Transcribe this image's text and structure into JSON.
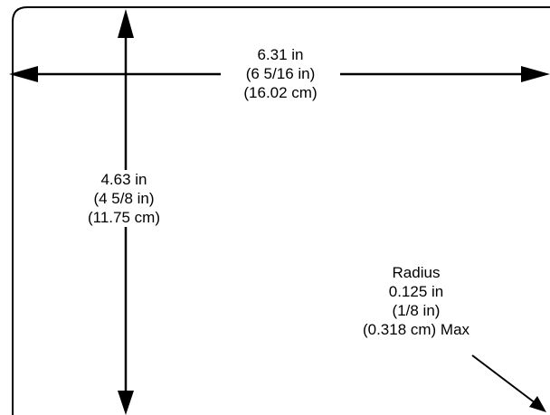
{
  "colors": {
    "line": "#000000",
    "background": "#ffffff"
  },
  "width_dimension": {
    "line1": "6.31 in",
    "line2": "(6 5/16 in)",
    "line3": "(16.02 cm)"
  },
  "height_dimension": {
    "line1": "4.63 in",
    "line2": "(4 5/8 in)",
    "line3": "(11.75 cm)"
  },
  "radius_note": {
    "line1": "Radius",
    "line2": "0.125 in",
    "line3": "(1/8 in)",
    "line4": "(0.318 cm) Max"
  }
}
